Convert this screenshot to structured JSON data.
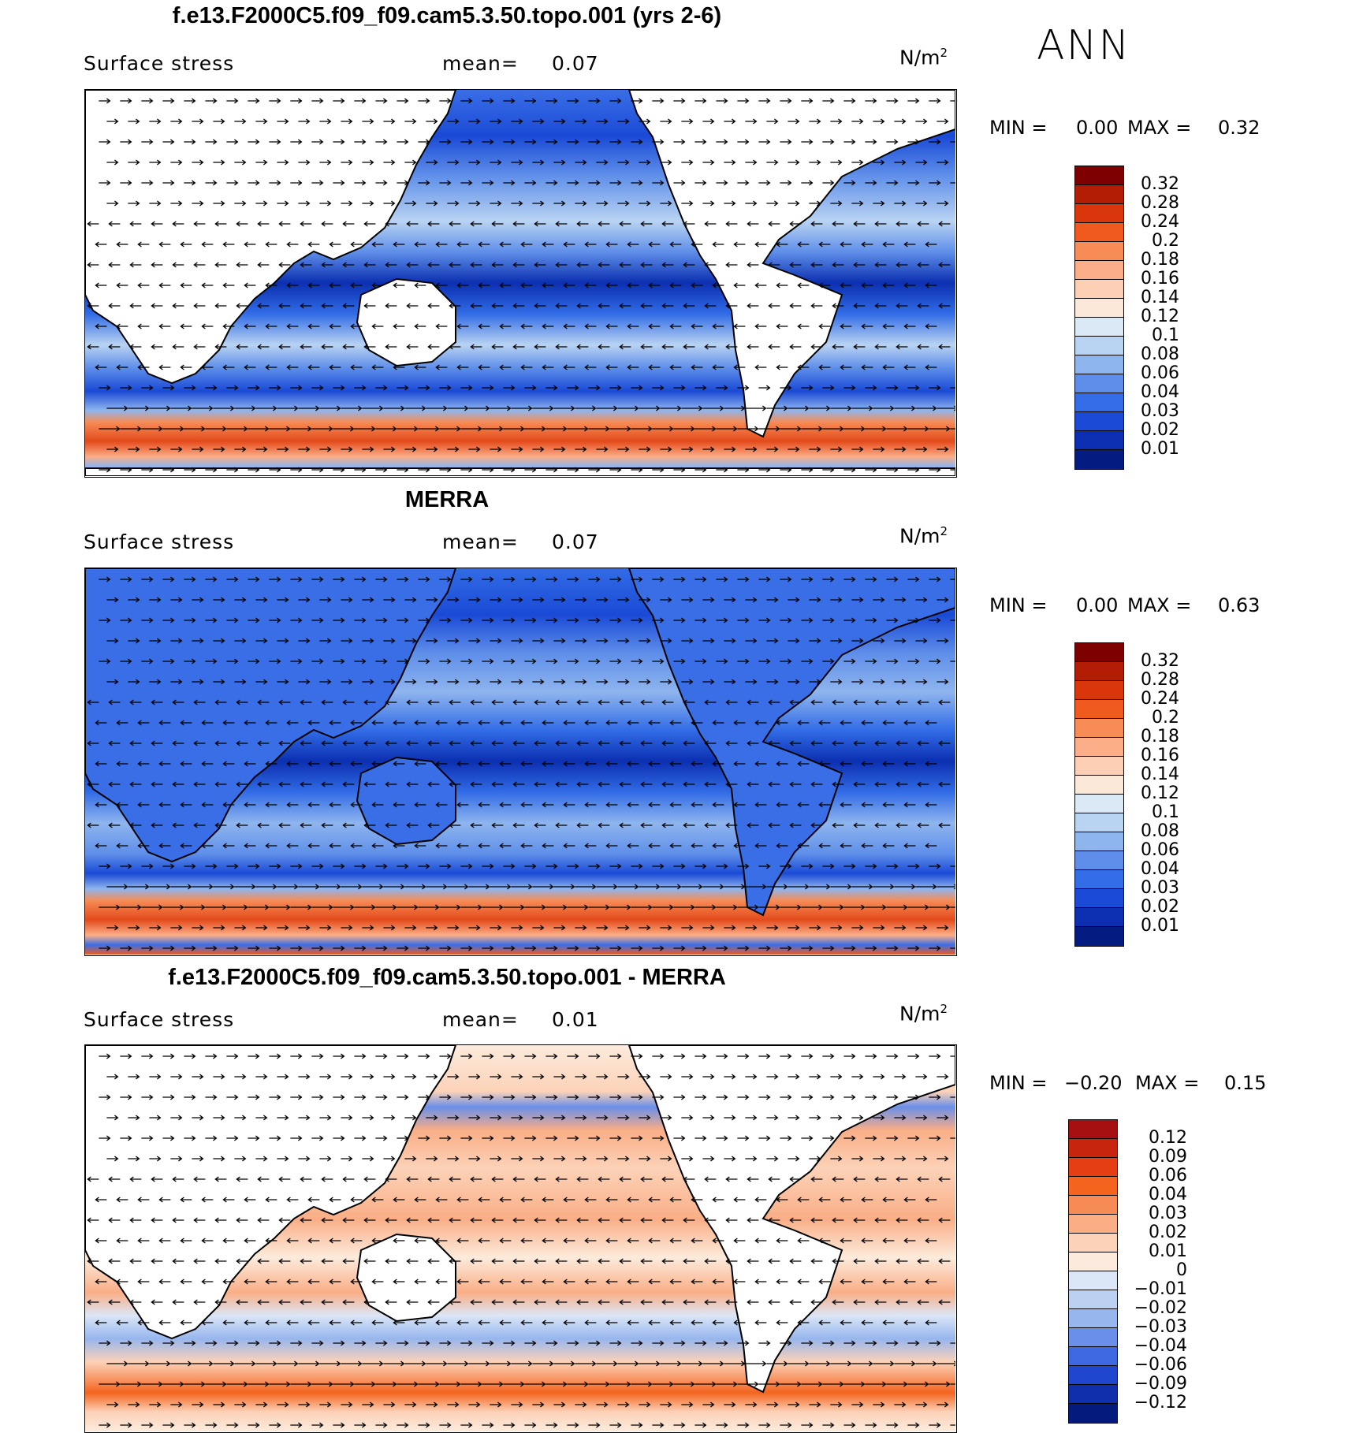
{
  "season": "ANN",
  "panels": [
    {
      "title": "f.e13.F2000C5.f09_f09.cam5.3.50.topo.001 (yrs 2-6)",
      "variable": "Surface stress",
      "mean_label": "mean=",
      "mean_value": "0.07",
      "units": "N/m",
      "units_exp": "2",
      "min_label": "MIN =",
      "min_value": "0.00",
      "max_label": "MAX =",
      "max_value": "0.32",
      "colorbar": {
        "labels": [
          "0.32",
          "0.28",
          "0.24",
          "0.2",
          "0.18",
          "0.16",
          "0.14",
          "0.12",
          "0.1",
          "0.08",
          "0.06",
          "0.04",
          "0.03",
          "0.02",
          "0.01"
        ],
        "colors": [
          "#7f0000",
          "#b31d06",
          "#d9360c",
          "#f05a1f",
          "#f78c56",
          "#fcae88",
          "#fdd0b5",
          "#fbe8d8",
          "#dbe9f7",
          "#b9d3f2",
          "#8fb5ee",
          "#5e8ee9",
          "#326ce6",
          "#1a4ad6",
          "#0b2fb0",
          "#041c82"
        ]
      }
    },
    {
      "title": "MERRA",
      "variable": "Surface stress",
      "mean_label": "mean=",
      "mean_value": "0.07",
      "units": "N/m",
      "units_exp": "2",
      "min_label": "MIN =",
      "min_value": "0.00",
      "max_label": "MAX =",
      "max_value": "0.63",
      "colorbar": {
        "labels": [
          "0.32",
          "0.28",
          "0.24",
          "0.2",
          "0.18",
          "0.16",
          "0.14",
          "0.12",
          "0.1",
          "0.08",
          "0.06",
          "0.04",
          "0.03",
          "0.02",
          "0.01"
        ],
        "colors": [
          "#7f0000",
          "#b31d06",
          "#d9360c",
          "#f05a1f",
          "#f78c56",
          "#fcae88",
          "#fdd0b5",
          "#fbe8d8",
          "#dbe9f7",
          "#b9d3f2",
          "#8fb5ee",
          "#5e8ee9",
          "#326ce6",
          "#1a4ad6",
          "#0b2fb0",
          "#041c82"
        ]
      }
    },
    {
      "title": "f.e13.F2000C5.f09_f09.cam5.3.50.topo.001 - MERRA",
      "variable": "Surface stress",
      "mean_label": "mean=",
      "mean_value": "0.01",
      "units": "N/m",
      "units_exp": "2",
      "min_label": "MIN =",
      "min_value": "−0.20",
      "max_label": "MAX =",
      "max_value": "0.15",
      "colorbar": {
        "labels": [
          "0.12",
          "0.09",
          "0.06",
          "0.04",
          "0.03",
          "0.02",
          "0.01",
          "0",
          "−0.01",
          "−0.02",
          "−0.03",
          "−0.04",
          "−0.06",
          "−0.09",
          "−0.12"
        ],
        "colors": [
          "#a50f0f",
          "#c8260c",
          "#e43e12",
          "#f4641f",
          "#f78b56",
          "#faae86",
          "#fcd2b8",
          "#fcebdc",
          "#dbe6f6",
          "#bcd0f2",
          "#97b6ee",
          "#6a8fe8",
          "#3d68e0",
          "#1f46cf",
          "#0e2eaa",
          "#041a7c"
        ]
      }
    }
  ]
}
